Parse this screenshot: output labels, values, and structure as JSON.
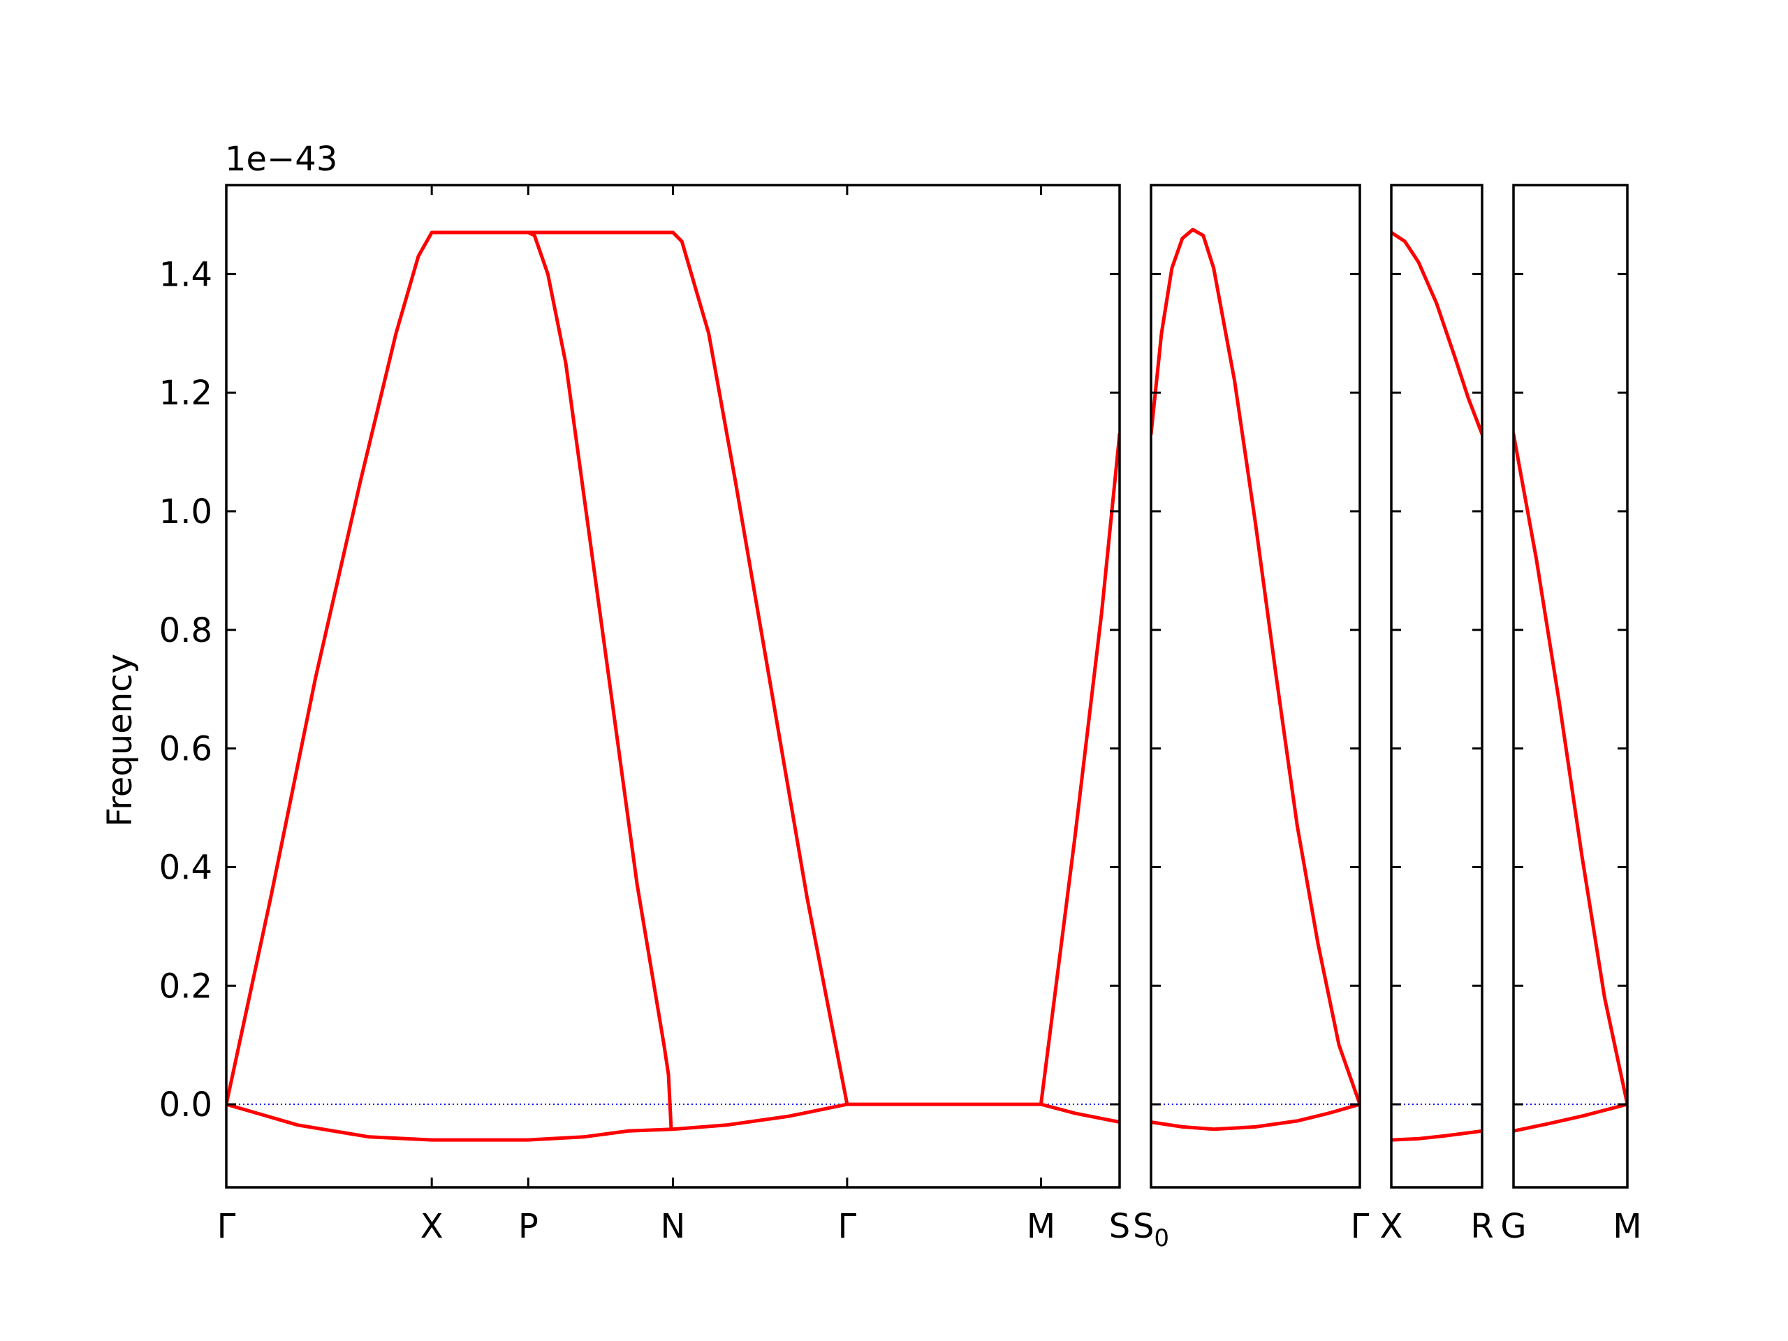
{
  "chart_data": {
    "type": "line",
    "ylabel": "Frequency",
    "y_offset_label": "1e−43",
    "yticks": [
      "0.0",
      "0.2",
      "0.4",
      "0.6",
      "0.8",
      "1.0",
      "1.2",
      "1.4"
    ],
    "ylim": [
      -0.14,
      1.55
    ],
    "colors": {
      "band": "#ff0000",
      "zero_line": "#0000ff",
      "frame": "#000000"
    },
    "panels": [
      {
        "labels": [
          {
            "x": 0.0,
            "text": "Γ"
          },
          {
            "x": 0.23,
            "text": "X"
          },
          {
            "x": 0.338,
            "text": "P"
          },
          {
            "x": 0.5,
            "text": "N"
          },
          {
            "x": 0.695,
            "text": "Γ"
          },
          {
            "x": 0.912,
            "text": "M"
          },
          {
            "x": 1.0,
            "text": "S"
          }
        ],
        "xlim": [
          0,
          1
        ],
        "series": [
          {
            "values": [
              [
                0,
                0
              ],
              [
                0.05,
                0.35
              ],
              [
                0.1,
                0.72
              ],
              [
                0.15,
                1.05
              ],
              [
                0.19,
                1.3
              ],
              [
                0.215,
                1.43
              ],
              [
                0.23,
                1.47
              ],
              [
                0.338,
                1.47
              ],
              [
                0.345,
                1.465
              ],
              [
                0.36,
                1.4
              ],
              [
                0.38,
                1.25
              ],
              [
                0.4,
                1.03
              ],
              [
                0.43,
                0.7
              ],
              [
                0.46,
                0.37
              ],
              [
                0.49,
                0.1
              ],
              [
                0.495,
                0.05
              ],
              [
                0.498,
                -0.04
              ]
            ]
          },
          {
            "values": [
              [
                0.338,
                1.47
              ],
              [
                0.5,
                1.47
              ],
              [
                0.51,
                1.455
              ],
              [
                0.54,
                1.3
              ],
              [
                0.57,
                1.05
              ],
              [
                0.61,
                0.7
              ],
              [
                0.65,
                0.35
              ],
              [
                0.695,
                0.0
              ]
            ]
          },
          {
            "values": [
              [
                0,
                0
              ],
              [
                0.08,
                -0.035
              ],
              [
                0.16,
                -0.055
              ],
              [
                0.23,
                -0.06
              ],
              [
                0.338,
                -0.06
              ],
              [
                0.4,
                -0.055
              ],
              [
                0.45,
                -0.045
              ],
              [
                0.5,
                -0.042
              ],
              [
                0.56,
                -0.035
              ],
              [
                0.63,
                -0.02
              ],
              [
                0.695,
                0.0
              ]
            ]
          },
          {
            "values": [
              [
                0.695,
                0.0
              ],
              [
                0.912,
                0.0
              ]
            ]
          },
          {
            "values": [
              [
                0.912,
                0.0
              ],
              [
                0.95,
                0.45
              ],
              [
                0.98,
                0.83
              ],
              [
                1.0,
                1.13
              ]
            ]
          },
          {
            "values": [
              [
                0.912,
                0.0
              ],
              [
                0.95,
                -0.015
              ],
              [
                1.0,
                -0.03
              ]
            ]
          }
        ]
      },
      {
        "labels": [
          {
            "x": 0.0,
            "text": "S",
            "sub": "0"
          },
          {
            "x": 1.0,
            "text": "Γ"
          }
        ],
        "xlim": [
          0,
          1
        ],
        "series": [
          {
            "values": [
              [
                0,
                1.13
              ],
              [
                0.05,
                1.3
              ],
              [
                0.1,
                1.41
              ],
              [
                0.15,
                1.46
              ],
              [
                0.2,
                1.475
              ],
              [
                0.25,
                1.465
              ],
              [
                0.3,
                1.41
              ],
              [
                0.4,
                1.22
              ],
              [
                0.5,
                0.98
              ],
              [
                0.6,
                0.72
              ],
              [
                0.7,
                0.47
              ],
              [
                0.8,
                0.27
              ],
              [
                0.9,
                0.1
              ],
              [
                1.0,
                0.0
              ]
            ]
          },
          {
            "values": [
              [
                0,
                -0.03
              ],
              [
                0.15,
                -0.038
              ],
              [
                0.3,
                -0.042
              ],
              [
                0.5,
                -0.038
              ],
              [
                0.7,
                -0.028
              ],
              [
                0.85,
                -0.015
              ],
              [
                1.0,
                0.0
              ]
            ]
          }
        ]
      },
      {
        "labels": [
          {
            "x": 0.0,
            "text": "X"
          },
          {
            "x": 1.0,
            "text": "R"
          }
        ],
        "xlim": [
          0,
          1
        ],
        "series": [
          {
            "values": [
              [
                0,
                1.47
              ],
              [
                0.15,
                1.455
              ],
              [
                0.3,
                1.42
              ],
              [
                0.5,
                1.35
              ],
              [
                0.7,
                1.26
              ],
              [
                0.85,
                1.19
              ],
              [
                1.0,
                1.13
              ]
            ]
          },
          {
            "values": [
              [
                0,
                -0.06
              ],
              [
                0.3,
                -0.058
              ],
              [
                0.6,
                -0.053
              ],
              [
                1.0,
                -0.045
              ]
            ]
          }
        ]
      },
      {
        "labels": [
          {
            "x": 0.0,
            "text": "G"
          },
          {
            "x": 1.0,
            "text": "M"
          }
        ],
        "xlim": [
          0,
          1
        ],
        "series": [
          {
            "values": [
              [
                0,
                1.13
              ],
              [
                0.2,
                0.92
              ],
              [
                0.4,
                0.68
              ],
              [
                0.6,
                0.42
              ],
              [
                0.8,
                0.18
              ],
              [
                1.0,
                0.0
              ]
            ]
          },
          {
            "values": [
              [
                0,
                -0.045
              ],
              [
                0.3,
                -0.033
              ],
              [
                0.6,
                -0.02
              ],
              [
                1.0,
                0.0
              ]
            ]
          }
        ]
      }
    ]
  }
}
